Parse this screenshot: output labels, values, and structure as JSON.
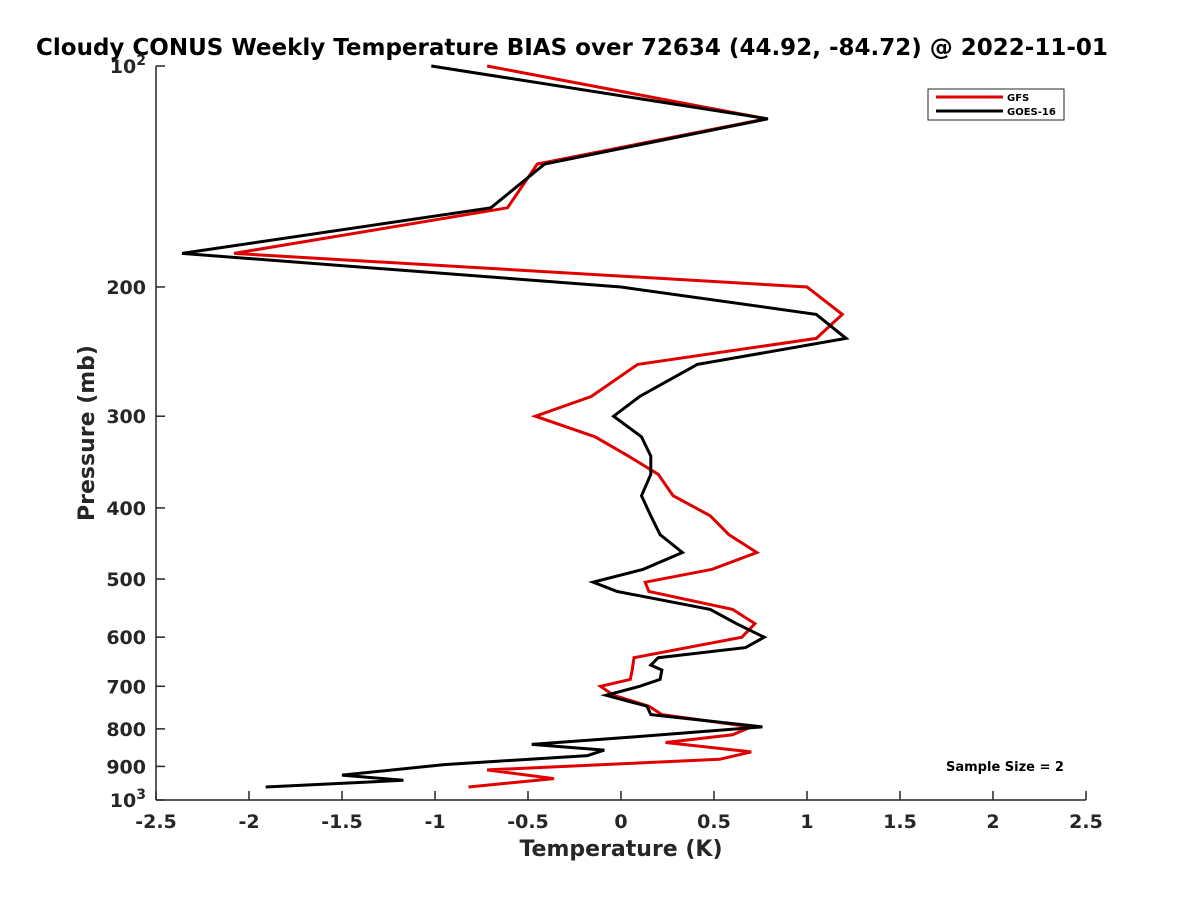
{
  "chart_data": {
    "type": "line",
    "title": "Cloudy CONUS Weekly Temperature BIAS over 72634 (44.92, -84.72) @ 2022-11-01",
    "xlabel": "Temperature (K)",
    "ylabel": "Pressure (mb)",
    "xlim": [
      -2.5,
      2.5
    ],
    "ylim": [
      100,
      1000
    ],
    "y_scale": "log",
    "y_reversed": true,
    "x_ticks": [
      "-2.5",
      "-2",
      "-1.5",
      "-1",
      "-0.5",
      "0",
      "0.5",
      "1",
      "1.5",
      "2",
      "2.5"
    ],
    "y_ticks": [
      {
        "value": 100,
        "label": "10",
        "sup": "2"
      },
      {
        "value": 200,
        "label": "200",
        "sup": ""
      },
      {
        "value": 300,
        "label": "300",
        "sup": ""
      },
      {
        "value": 400,
        "label": "400",
        "sup": ""
      },
      {
        "value": 500,
        "label": "500",
        "sup": ""
      },
      {
        "value": 600,
        "label": "600",
        "sup": ""
      },
      {
        "value": 700,
        "label": "700",
        "sup": ""
      },
      {
        "value": 800,
        "label": "800",
        "sup": ""
      },
      {
        "value": 900,
        "label": "900",
        "sup": ""
      },
      {
        "value": 1000,
        "label": "10",
        "sup": "3"
      }
    ],
    "legend": "top-right",
    "grid": false,
    "annotation": "Sample Size = 2",
    "series": [
      {
        "name": "GFS",
        "color": "#e00000",
        "x": [
          -0.72,
          0.78,
          -0.45,
          -0.61,
          -2.08,
          1.0,
          1.19,
          1.05,
          0.09,
          -0.16,
          -0.46,
          -0.14,
          0.04,
          0.2,
          0.28,
          0.48,
          0.58,
          0.73,
          0.49,
          0.13,
          0.15,
          0.6,
          0.72,
          0.65,
          0.07,
          0.06,
          0.05,
          -0.11,
          -0.04,
          0.15,
          0.22,
          0.7,
          0.6,
          0.24,
          0.7,
          0.53,
          -0.72,
          -0.36,
          -0.82
        ],
        "y": [
          100,
          118,
          136,
          156,
          180,
          200,
          218,
          235,
          255,
          282,
          300,
          320,
          340,
          360,
          385,
          410,
          435,
          460,
          485,
          505,
          520,
          550,
          575,
          600,
          640,
          665,
          685,
          700,
          720,
          745,
          765,
          795,
          815,
          835,
          860,
          880,
          910,
          935,
          960
        ]
      },
      {
        "name": "GOES-16",
        "color": "#000000",
        "x": [
          -1.02,
          0.79,
          -0.41,
          -0.7,
          -2.36,
          0.0,
          1.05,
          1.21,
          0.41,
          0.1,
          -0.04,
          0.11,
          0.16,
          0.16,
          0.11,
          0.16,
          0.21,
          0.33,
          0.12,
          -0.15,
          -0.02,
          0.48,
          0.62,
          0.77,
          0.67,
          0.2,
          0.16,
          0.22,
          0.21,
          0.1,
          -0.08,
          0.14,
          0.16,
          0.76,
          0.08,
          -0.48,
          -0.09,
          -0.18,
          -0.95,
          -1.5,
          -1.17,
          -1.91
        ],
        "y": [
          100,
          118,
          136,
          156,
          180,
          200,
          218,
          235,
          255,
          282,
          300,
          320,
          340,
          360,
          385,
          410,
          435,
          460,
          485,
          505,
          520,
          550,
          575,
          600,
          620,
          640,
          655,
          665,
          685,
          700,
          720,
          745,
          765,
          795,
          820,
          840,
          855,
          870,
          895,
          925,
          940,
          960
        ]
      }
    ]
  }
}
